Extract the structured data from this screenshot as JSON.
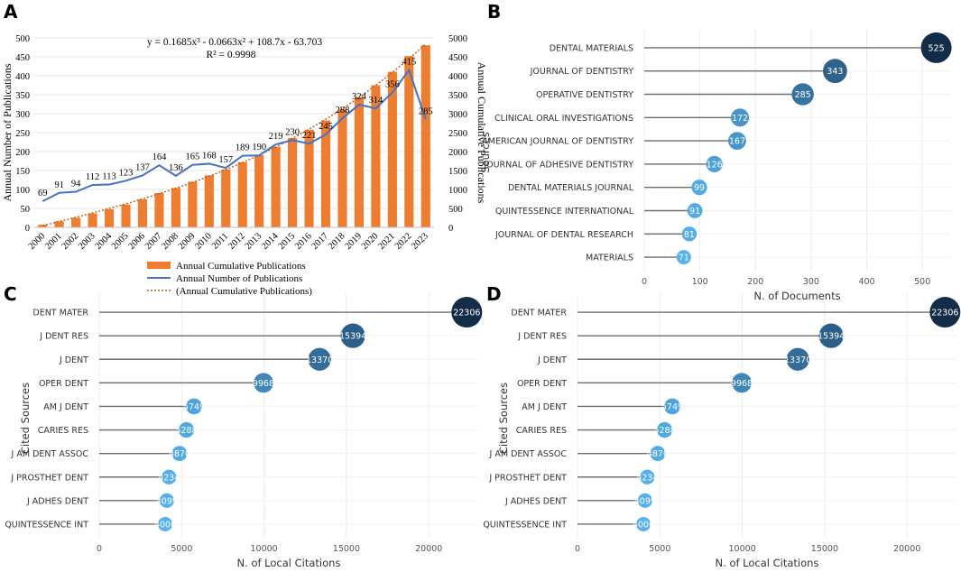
{
  "chart_data": [
    {
      "panel": "A",
      "type": "bar+line",
      "categories": [
        "2000",
        "2001",
        "2002",
        "2003",
        "2004",
        "2005",
        "2006",
        "2007",
        "2008",
        "2009",
        "2010",
        "2011",
        "2012",
        "2013",
        "2014",
        "2015",
        "2016",
        "2017",
        "2018",
        "2019",
        "2020",
        "2021",
        "2022",
        "2023"
      ],
      "series": [
        {
          "name": "Annual Cumulative Publications",
          "type": "bar",
          "axis": "right",
          "color": "#ed7d31",
          "values": [
            69,
            160,
            254,
            366,
            479,
            602,
            739,
            903,
            1039,
            1204,
            1372,
            1529,
            1718,
            1908,
            2127,
            2357,
            2578,
            2823,
            3111,
            3435,
            3749,
            4105,
            4520,
            4805
          ]
        },
        {
          "name": "Annual Number of Publications",
          "type": "line",
          "axis": "left",
          "color": "#4472c4",
          "values": [
            69,
            91,
            94,
            112,
            113,
            123,
            137,
            164,
            136,
            165,
            168,
            157,
            189,
            190,
            219,
            230,
            221,
            245,
            288,
            324,
            314,
            356,
            415,
            285
          ]
        },
        {
          "name": "(Annual Cumulative Publications)",
          "type": "trendline",
          "axis": "right",
          "color": "#ed7d31"
        }
      ],
      "equation": "y = 0.1685x³ - 0.0663x² + 108.7x - 63.703",
      "r2": "R² = 0.9998",
      "ylabel_left": "Annual Number of Publications",
      "ylabel_right": "Annual Cumulative Publications",
      "ylim_left": [
        0,
        500
      ],
      "ylim_right": [
        0,
        5000
      ],
      "yticks_left": [
        "0",
        "50",
        "100",
        "150",
        "200",
        "250",
        "300",
        "350",
        "400",
        "450",
        "500"
      ],
      "yticks_right": [
        "0",
        "500",
        "1000",
        "1500",
        "2000",
        "2500",
        "3000",
        "3500",
        "4000",
        "4500",
        "5000"
      ]
    },
    {
      "panel": "B",
      "type": "lollipop",
      "categories": [
        "DENTAL MATERIALS",
        "JOURNAL OF DENTISTRY",
        "OPERATIVE DENTISTRY",
        "CLINICAL ORAL INVESTIGATIONS",
        "AMERICAN JOURNAL OF DENTISTRY",
        "JOURNAL OF ADHESIVE DENTISTRY",
        "DENTAL MATERIALS JOURNAL",
        "QUINTESSENCE INTERNATIONAL",
        "JOURNAL OF DENTAL RESEARCH",
        "MATERIALS"
      ],
      "values": [
        525,
        343,
        285,
        172,
        167,
        126,
        99,
        91,
        81,
        71
      ],
      "labels": [
        "525",
        "343",
        "285",
        "172",
        "167",
        "126",
        "99",
        "91",
        "81",
        "71"
      ],
      "xlabel": "N. of Documents",
      "ylabel": "Sources",
      "xlim": [
        0,
        550
      ],
      "xticks": [
        "0",
        "100",
        "200",
        "300",
        "400",
        "500"
      ]
    },
    {
      "panel": "C",
      "type": "lollipop",
      "categories": [
        "DENT MATER",
        "J DENT RES",
        "J DENT",
        "OPER DENT",
        "AM J DENT",
        "CARIES RES",
        "J AM DENT ASSOC",
        "J PROSTHET DENT",
        "J ADHES DENT",
        "QUINTESSENCE INT"
      ],
      "values": [
        22306,
        15394,
        13370,
        9968,
        5749,
        5288,
        4870,
        4234,
        4099,
        4000
      ],
      "labels": [
        "22306",
        "15394",
        "13370",
        "9968",
        "5749",
        "5288",
        "4870",
        "4234",
        "4099",
        "4000"
      ],
      "xlabel": "N. of Local Citations",
      "ylabel": "Cited Sources",
      "xlim": [
        0,
        23000
      ],
      "xticks": [
        "0",
        "5000",
        "10000",
        "15000",
        "20000"
      ]
    },
    {
      "panel": "D",
      "type": "lollipop",
      "categories": [
        "DENT MATER",
        "J DENT RES",
        "J DENT",
        "OPER DENT",
        "AM J DENT",
        "CARIES RES",
        "J AM DENT ASSOC",
        "J PROSTHET DENT",
        "J ADHES DENT",
        "QUINTESSENCE INT"
      ],
      "values": [
        22306,
        15394,
        13370,
        9968,
        5749,
        5288,
        4870,
        4234,
        4099,
        4000
      ],
      "labels": [
        "22306",
        "15394",
        "13370",
        "9968",
        "5749",
        "5288",
        "4870",
        "4234",
        "4099",
        "4000"
      ],
      "xlabel": "N. of Local Citations",
      "ylabel": "Cited Sources",
      "xlim": [
        0,
        23000
      ],
      "xticks": [
        "0",
        "5000",
        "10000",
        "15000",
        "20000"
      ]
    }
  ]
}
